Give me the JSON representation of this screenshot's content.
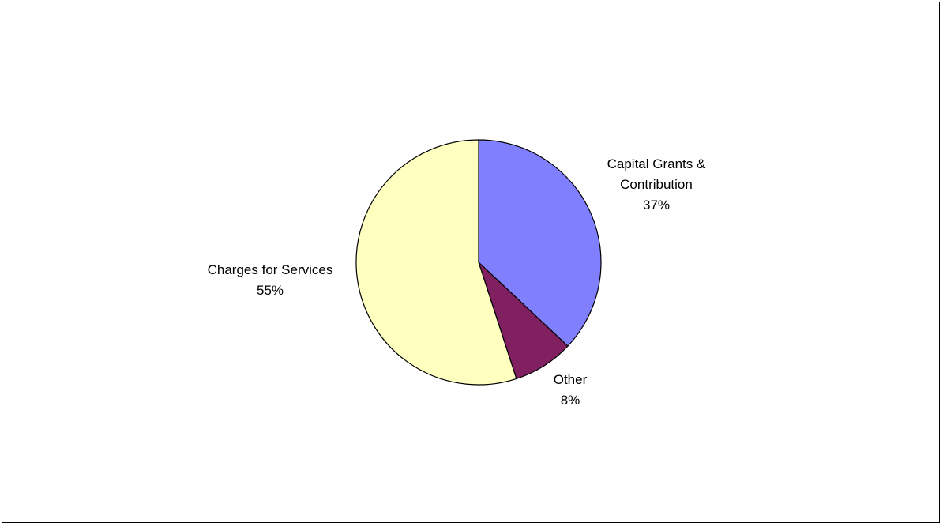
{
  "chart_data": {
    "type": "pie",
    "title": "",
    "slices": [
      {
        "label_lines": [
          "Capital Grants &",
          "Contribution"
        ],
        "value": 37,
        "value_label": "37%",
        "color": "#8080ff"
      },
      {
        "label_lines": [
          "Other"
        ],
        "value": 8,
        "value_label": "8%",
        "color": "#802060"
      },
      {
        "label_lines": [
          "Charges for Services"
        ],
        "value": 55,
        "value_label": "55%",
        "color": "#ffffc0"
      }
    ],
    "legend": "none",
    "start_angle": "12 o'clock",
    "direction": "clockwise"
  }
}
